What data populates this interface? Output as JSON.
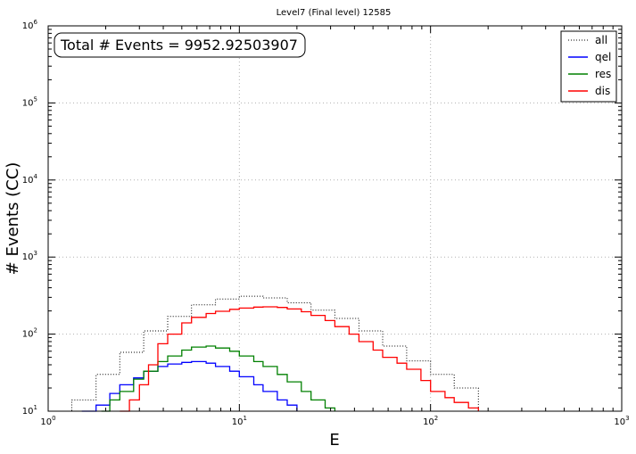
{
  "chart_data": {
    "type": "line",
    "drawstyle": "steps",
    "title": "Level7 (Final level) 12585",
    "xlabel": "E",
    "ylabel": "# Events (CC)",
    "xscale": "log",
    "yscale": "log",
    "xlim": [
      1,
      1000
    ],
    "ylim": [
      10,
      1000000
    ],
    "grid": true,
    "annotation": "Total # Events = 9952.92503907",
    "x_tick_labels": [
      {
        "base": "10",
        "exp": "0",
        "value": 1
      },
      {
        "base": "10",
        "exp": "1",
        "value": 10
      },
      {
        "base": "10",
        "exp": "2",
        "value": 100
      },
      {
        "base": "10",
        "exp": "3",
        "value": 1000
      }
    ],
    "y_tick_labels": [
      {
        "base": "10",
        "exp": "1",
        "value": 10
      },
      {
        "base": "10",
        "exp": "2",
        "value": 100
      },
      {
        "base": "10",
        "exp": "3",
        "value": 1000
      },
      {
        "base": "10",
        "exp": "4",
        "value": 10000
      },
      {
        "base": "10",
        "exp": "5",
        "value": 100000
      },
      {
        "base": "10",
        "exp": "6",
        "value": 1000000
      }
    ],
    "legend_position": "top-right",
    "series": [
      {
        "name": "all",
        "color": "#000000",
        "style": "dotted",
        "x": [
          1.0,
          1.33,
          1.78,
          2.37,
          3.16,
          4.22,
          5.62,
          7.5,
          10.0,
          13.3,
          17.8,
          23.7,
          31.6,
          42.2,
          56.2,
          75.0,
          100,
          133,
          178
        ],
        "y": [
          10,
          14,
          30,
          58,
          110,
          170,
          240,
          285,
          310,
          295,
          255,
          205,
          160,
          110,
          70,
          45,
          30,
          20,
          10
        ]
      },
      {
        "name": "qel",
        "color": "#0000ff",
        "style": "solid",
        "x": [
          1.5,
          1.78,
          2.1,
          2.37,
          2.8,
          3.16,
          3.75,
          4.22,
          5.0,
          5.62,
          6.7,
          7.5,
          8.9,
          10.0,
          11.9,
          13.3,
          15.8,
          17.8,
          20.0
        ],
        "y": [
          10,
          12,
          17,
          22,
          27,
          33,
          38,
          41,
          43,
          44,
          42,
          38,
          33,
          28,
          22,
          18,
          14,
          12,
          10
        ]
      },
      {
        "name": "res",
        "color": "#008000",
        "style": "solid",
        "x": [
          1.9,
          2.1,
          2.37,
          2.8,
          3.16,
          3.75,
          4.22,
          5.0,
          5.62,
          6.7,
          7.5,
          8.9,
          10.0,
          11.9,
          13.3,
          15.8,
          17.8,
          21.1,
          23.7,
          28.1,
          31.6
        ],
        "y": [
          10,
          14,
          18,
          26,
          33,
          44,
          52,
          62,
          68,
          70,
          66,
          60,
          52,
          44,
          38,
          30,
          24,
          18,
          14,
          11,
          10
        ]
      },
      {
        "name": "dis",
        "color": "#ff0000",
        "style": "solid",
        "x": [
          2.37,
          2.66,
          3.0,
          3.35,
          3.75,
          4.22,
          5.0,
          5.62,
          6.7,
          7.5,
          8.9,
          10.0,
          11.9,
          13.3,
          15.8,
          17.8,
          21.1,
          23.7,
          28.1,
          31.6,
          37.5,
          42.2,
          50.1,
          56.2,
          66.8,
          75.0,
          89.1,
          100,
          119,
          133,
          158,
          178
        ],
        "y": [
          10,
          14,
          22,
          40,
          75,
          100,
          140,
          165,
          185,
          198,
          210,
          218,
          224,
          226,
          222,
          212,
          195,
          175,
          150,
          125,
          100,
          80,
          62,
          50,
          42,
          35,
          25,
          18,
          15,
          13,
          11,
          10
        ]
      }
    ]
  }
}
